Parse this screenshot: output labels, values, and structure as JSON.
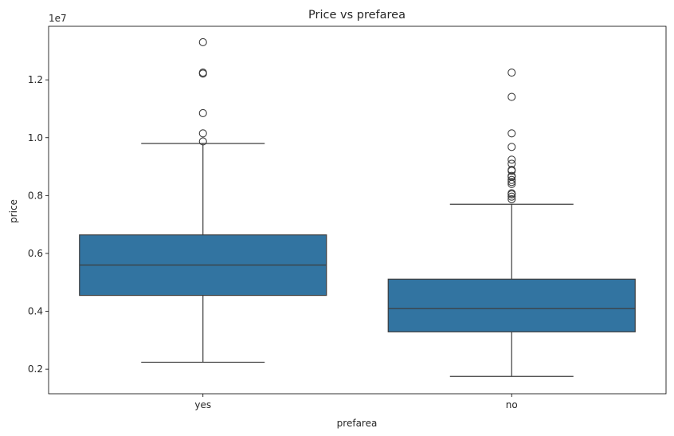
{
  "chart_data": {
    "type": "box",
    "title": "Price vs prefarea",
    "xlabel": "prefarea",
    "ylabel": "price",
    "y_scale_multiplier": "1e7",
    "ylim": [
      1150000,
      13850000
    ],
    "yticks": [
      2000000,
      4000000,
      6000000,
      8000000,
      10000000,
      12000000
    ],
    "ytick_labels": [
      "0.2",
      "0.4",
      "0.6",
      "0.8",
      "1.0",
      "1.2"
    ],
    "categories": [
      "yes",
      "no"
    ],
    "grid": false,
    "box_color": "#3274a1",
    "line_color": "#3d3d3d",
    "boxes": [
      {
        "category": "yes",
        "whisker_low": 2240000,
        "q1": 4550000,
        "median": 5600000,
        "q3": 6640000,
        "whisker_high": 9800000,
        "outliers": [
          9870000,
          10150000,
          10850000,
          12215000,
          12250000,
          13300000
        ]
      },
      {
        "category": "no",
        "whisker_low": 1750000,
        "q1": 3290000,
        "median": 4095000,
        "q3": 5110000,
        "whisker_high": 7700000,
        "outliers": [
          7875000,
          7962000,
          8043000,
          8080000,
          8400000,
          8470000,
          8540000,
          8645000,
          8680000,
          8855000,
          8890000,
          9100000,
          9240000,
          9681000,
          10150000,
          11410000,
          12250000
        ]
      }
    ]
  }
}
